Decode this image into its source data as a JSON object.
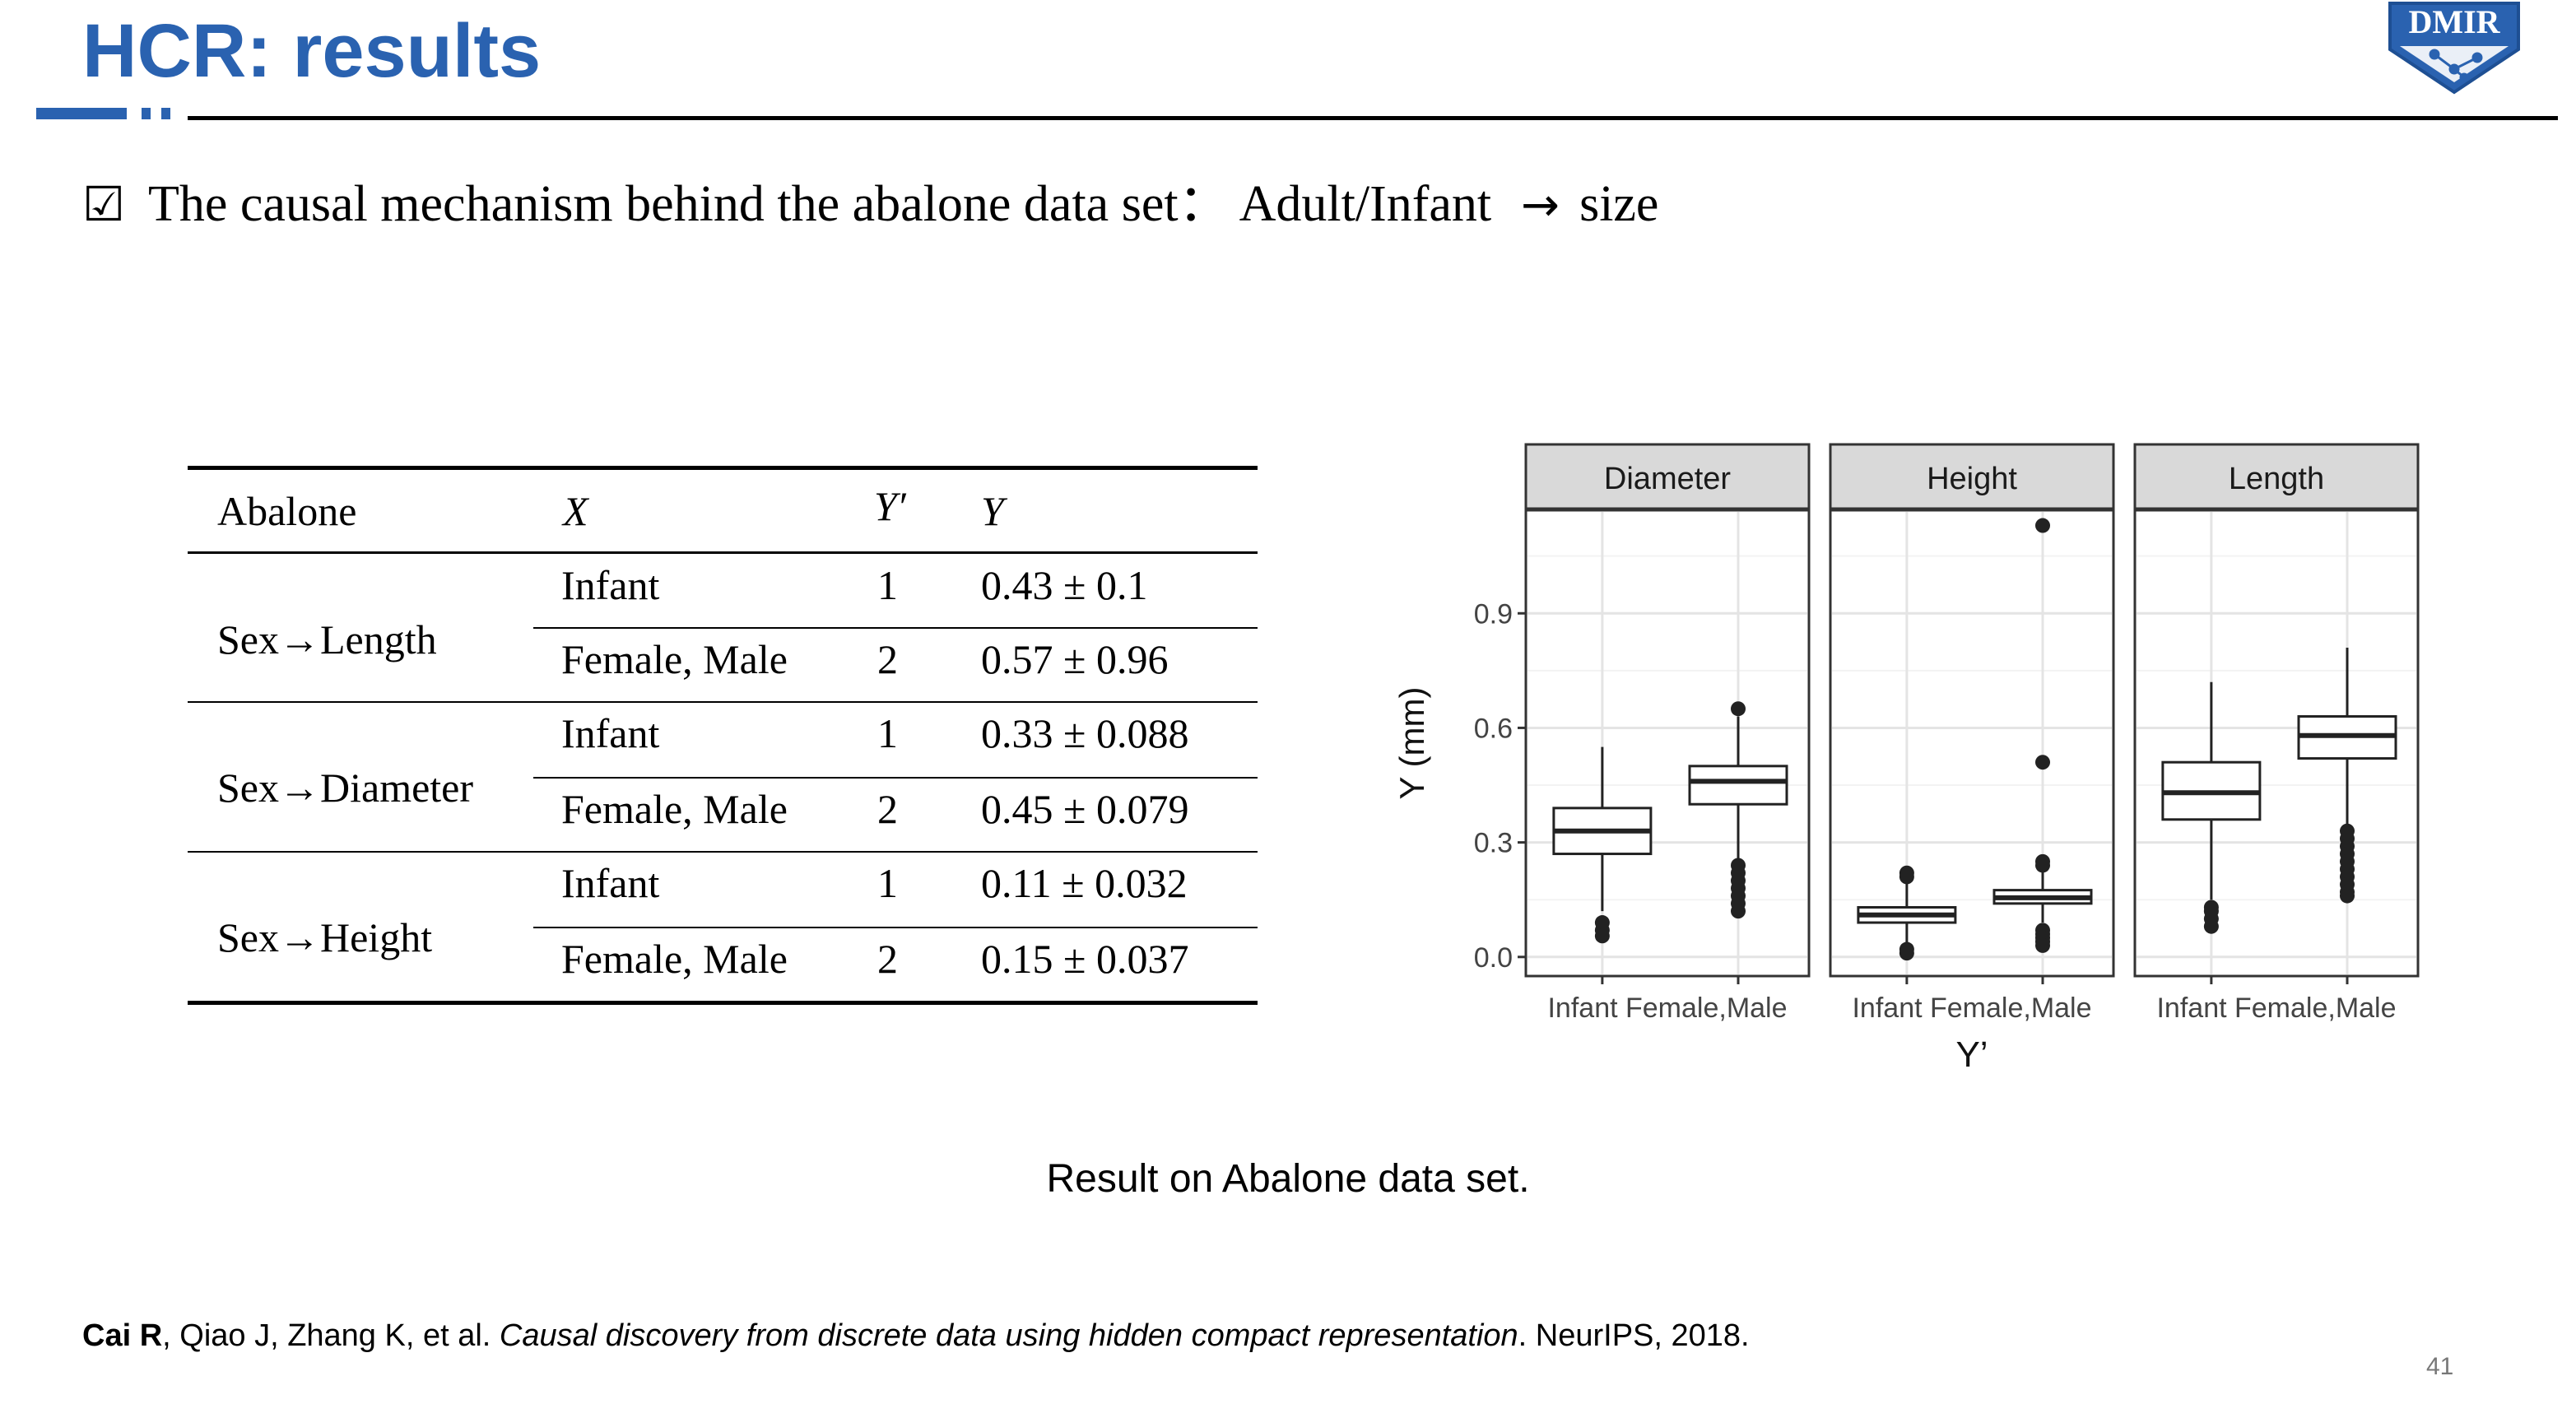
{
  "slide": {
    "title": "HCR: results",
    "bullet_icon": "☑",
    "bullet_text": "The causal mechanism behind the abalone data set：  Adult/Infant",
    "bullet_arrow": "→",
    "bullet_tail": "size",
    "logo_text": "DMIR",
    "caption": "Result on Abalone data set.",
    "page_number": "41"
  },
  "table": {
    "headers": [
      "Abalone",
      "X",
      "Y′",
      "Y"
    ],
    "groups": [
      {
        "label": "Sex→Length",
        "rows": [
          {
            "x": "Infant",
            "yprime": "1",
            "y": "0.43 ± 0.1"
          },
          {
            "x": "Female, Male",
            "yprime": "2",
            "y": "0.57 ± 0.96"
          }
        ]
      },
      {
        "label": "Sex→Diameter",
        "rows": [
          {
            "x": "Infant",
            "yprime": "1",
            "y": "0.33 ± 0.088"
          },
          {
            "x": "Female, Male",
            "yprime": "2",
            "y": "0.45 ± 0.079"
          }
        ]
      },
      {
        "label": "Sex→Height",
        "rows": [
          {
            "x": "Infant",
            "yprime": "1",
            "y": "0.11 ± 0.032"
          },
          {
            "x": "Female, Male",
            "yprime": "2",
            "y": "0.15 ± 0.037"
          }
        ]
      }
    ]
  },
  "reference": {
    "author_bold": "Cai R",
    "authors_rest": ", Qiao J, Zhang K, et al. ",
    "title_italic": "Causal discovery from discrete data using hidden compact representation",
    "venue": ". NeurIPS, 2018."
  },
  "chart_data": {
    "type": "box",
    "ylabel": "Y (mm)",
    "xlabel": "Y’",
    "ylim": [
      -0.05,
      1.17
    ],
    "yticks": [
      0.0,
      0.3,
      0.6,
      0.9
    ],
    "ytick_labels": [
      "0.0",
      "0.3",
      "0.6",
      "0.9"
    ],
    "categories": [
      "Infant",
      "Female,Male"
    ],
    "grid": true,
    "panel_fill": "#ffffff",
    "strip_fill": "#d9d9d9",
    "facets": [
      {
        "name": "Diameter",
        "boxes": [
          {
            "category": "Infant",
            "whisker_low": 0.12,
            "q1": 0.27,
            "median": 0.33,
            "q3": 0.39,
            "whisker_high": 0.55,
            "outliers": [
              0.09,
              0.07,
              0.055
            ]
          },
          {
            "category": "Female,Male",
            "whisker_low": 0.25,
            "q1": 0.4,
            "median": 0.46,
            "q3": 0.5,
            "whisker_high": 0.63,
            "outliers": [
              0.65,
              0.24,
              0.22,
              0.2,
              0.18,
              0.16,
              0.14,
              0.12
            ]
          }
        ]
      },
      {
        "name": "Height",
        "boxes": [
          {
            "category": "Infant",
            "whisker_low": 0.03,
            "q1": 0.09,
            "median": 0.11,
            "q3": 0.13,
            "whisker_high": 0.2,
            "outliers": [
              0.22,
              0.21,
              0.02,
              0.01
            ]
          },
          {
            "category": "Female,Male",
            "whisker_low": 0.09,
            "q1": 0.14,
            "median": 0.155,
            "q3": 0.175,
            "whisker_high": 0.23,
            "outliers": [
              1.13,
              0.51,
              0.25,
              0.24,
              0.07,
              0.06,
              0.05,
              0.04,
              0.03
            ]
          }
        ]
      },
      {
        "name": "Length",
        "boxes": [
          {
            "category": "Infant",
            "whisker_low": 0.15,
            "q1": 0.36,
            "median": 0.43,
            "q3": 0.51,
            "whisker_high": 0.72,
            "outliers": [
              0.13,
              0.12,
              0.1,
              0.08
            ]
          },
          {
            "category": "Female,Male",
            "whisker_low": 0.34,
            "q1": 0.52,
            "median": 0.58,
            "q3": 0.63,
            "whisker_high": 0.81,
            "outliers": [
              0.33,
              0.31,
              0.29,
              0.27,
              0.25,
              0.23,
              0.21,
              0.19,
              0.17,
              0.16
            ]
          }
        ]
      }
    ]
  }
}
